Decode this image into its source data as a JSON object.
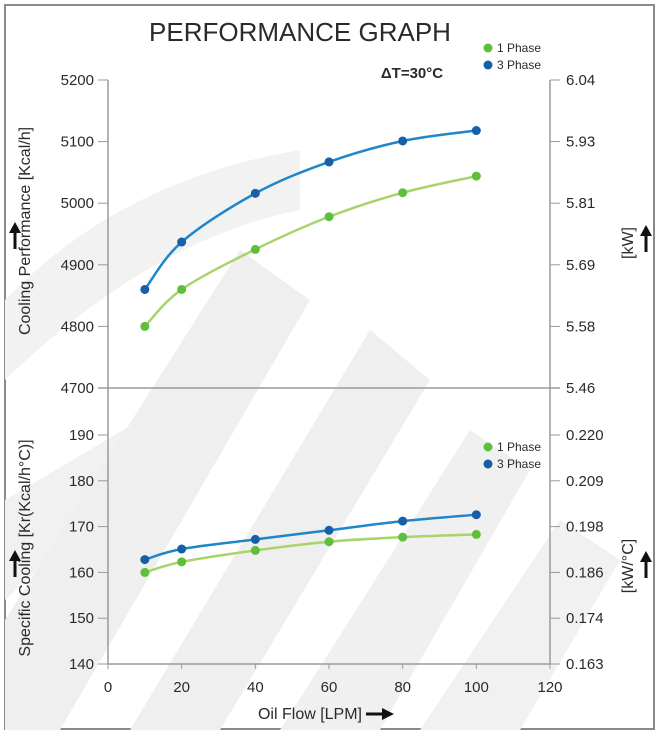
{
  "chart_data": [
    {
      "type": "line",
      "title": "PERFORMANCE GRAPH",
      "annotation": "ΔT=30°C",
      "ylabel": "Cooling Performance [Kcal/h]",
      "y2label": "[kW]",
      "xlim": [
        0,
        120
      ],
      "ylim": [
        4700,
        5200
      ],
      "y_ticks": [
        "4700",
        "4800",
        "4900",
        "5000",
        "5100",
        "5200"
      ],
      "y2_ticks": [
        "5.46",
        "5.58",
        "5.69",
        "5.81",
        "5.93",
        "6.04"
      ],
      "legend_position": "top-right",
      "grid": false,
      "series": [
        {
          "name": "1 Phase",
          "color": "#5dbf3c",
          "line_color": "#a8d46a",
          "x": [
            10,
            20,
            40,
            60,
            80,
            100
          ],
          "y": [
            4800,
            4860,
            4925,
            4978,
            5017,
            5044
          ]
        },
        {
          "name": "3 Phase",
          "color": "#1760a8",
          "line_color": "#1f86c8",
          "x": [
            10,
            20,
            40,
            60,
            80,
            100
          ],
          "y": [
            4860,
            4937,
            5016,
            5067,
            5101,
            5118
          ]
        }
      ]
    },
    {
      "type": "line",
      "ylabel": "Specific Cooling [Kr(Kcal/h°C)]",
      "y2label": "[kW/°C]",
      "xlabel": "Oil Flow [LPM]",
      "xlim": [
        0,
        120
      ],
      "ylim": [
        140,
        190
      ],
      "x_ticks": [
        "0",
        "20",
        "40",
        "60",
        "80",
        "100",
        "120"
      ],
      "y_ticks": [
        "140",
        "150",
        "160",
        "170",
        "180",
        "190"
      ],
      "y2_ticks": [
        "0.163",
        "0.174",
        "0.186",
        "0.198",
        "0.209",
        "0.220"
      ],
      "legend_position": "right",
      "grid": false,
      "series": [
        {
          "name": "1 Phase",
          "color": "#5dbf3c",
          "line_color": "#a8d46a",
          "x": [
            10,
            20,
            40,
            60,
            80,
            100
          ],
          "y": [
            160.0,
            162.3,
            164.8,
            166.7,
            167.7,
            168.3
          ]
        },
        {
          "name": "3 Phase",
          "color": "#1760a8",
          "line_color": "#1f86c8",
          "x": [
            10,
            20,
            40,
            60,
            80,
            100
          ],
          "y": [
            162.8,
            165.1,
            167.2,
            169.2,
            171.2,
            172.6
          ]
        }
      ]
    }
  ],
  "colors": {
    "axis": "#9a9a9a",
    "watermark": "#eeeeee",
    "frame": "#8a8a8a",
    "text": "#2a2a2a"
  }
}
